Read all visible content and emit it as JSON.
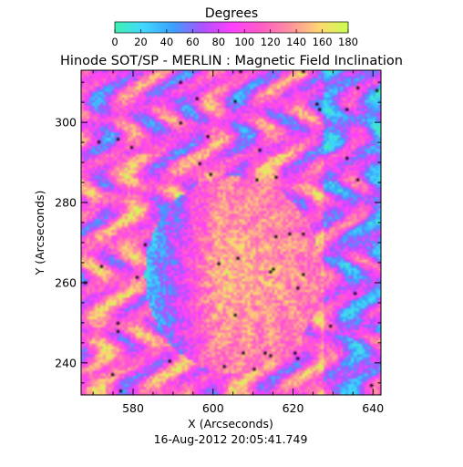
{
  "chart_data": {
    "type": "heatmap",
    "title": "Hinode SOT/SP - MERLIN : Magnetic Field Inclination",
    "xlabel": "X (Arcseconds)",
    "ylabel": "Y (Arcseconds)",
    "footer": "16-Aug-2012 20:05:41.749",
    "xlim": [
      567,
      642
    ],
    "ylim": [
      232,
      313
    ],
    "x_ticks": [
      580,
      600,
      620,
      640
    ],
    "y_ticks": [
      240,
      260,
      280,
      300
    ],
    "colorbar": {
      "label": "Degrees",
      "range": [
        0,
        180
      ],
      "ticks": [
        0,
        20,
        40,
        60,
        80,
        100,
        120,
        140,
        160,
        180
      ]
    },
    "features": {
      "umbra_center": [
        605,
        262
      ],
      "inclination_range": [
        0,
        180
      ]
    }
  }
}
